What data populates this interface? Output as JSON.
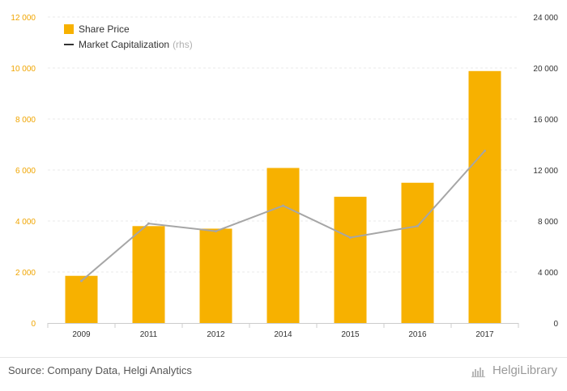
{
  "chart_data": {
    "type": "bar",
    "categories": [
      "2009",
      "2011",
      "2012",
      "2014",
      "2015",
      "2016",
      "2017"
    ],
    "series": [
      {
        "name": "Share Price",
        "type": "bar",
        "axis": "left",
        "values": [
          1850,
          3800,
          3700,
          6080,
          4950,
          5500,
          9880
        ]
      },
      {
        "name": "Market Capitalization",
        "type": "line",
        "axis": "right",
        "values": [
          3300,
          7800,
          7200,
          9200,
          6700,
          7600,
          13500
        ]
      }
    ],
    "legend": {
      "bar_label": "Share Price",
      "line_label": "Market Capitalization",
      "line_suffix": "(rhs)",
      "placement": "top-left"
    },
    "y_left": {
      "ylim": [
        0,
        12000
      ],
      "ticks": [
        "0",
        "2 000",
        "4 000",
        "6 000",
        "8 000",
        "10 000",
        "12 000"
      ]
    },
    "y_right": {
      "ylim": [
        0,
        24000
      ],
      "ticks": [
        "0",
        "4 000",
        "8 000",
        "12 000",
        "16 000",
        "20 000",
        "24 000"
      ]
    },
    "grid": true
  },
  "colors": {
    "bar": "#f7b100",
    "line": "#a6a6a6",
    "left_ticks": "#f0a500",
    "grid": "#e9e9e9"
  },
  "footer": {
    "source": "Source: Company Data, Helgi Analytics",
    "brand": "HelgiLibrary"
  }
}
